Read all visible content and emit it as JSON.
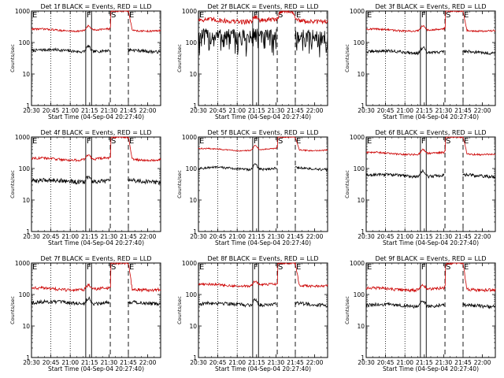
{
  "chart_data": [
    {
      "type": "line",
      "title": "Det 1f BLACK = Events, RED = LLD",
      "xlabel": "Start Time (04-Sep-04 20:27:40)",
      "ylabel": "Counts/sec",
      "yscale": "log",
      "ylim": [
        1,
        1000
      ],
      "xticks": [
        "20:30",
        "20:45",
        "21:00",
        "21:15",
        "21:30",
        "21:45",
        "22:00"
      ],
      "yticks": [
        "1",
        "10",
        "100",
        "1000"
      ],
      "flags": [
        "E",
        "F",
        "S",
        "E"
      ],
      "series": [
        {
          "color": "#000000",
          "profile": "black-norm",
          "base": 55,
          "noise": 0.05
        },
        {
          "color": "#cc0000",
          "profile": "red-norm",
          "base": 250,
          "noise": 0.03,
          "saturate": false
        }
      ]
    },
    {
      "type": "line",
      "title": "Det 2f BLACK = Events, RED = LLD",
      "xlabel": "Start Time (04-Sep-04 20:27:40)",
      "ylabel": "Counts/sec",
      "yscale": "log",
      "ylim": [
        1,
        1000
      ],
      "xticks": [
        "20:30",
        "20:45",
        "21:00",
        "21:15",
        "21:30",
        "21:45",
        "22:00"
      ],
      "yticks": [
        "1",
        "10",
        "100",
        "1000"
      ],
      "flags": [
        "E",
        "F",
        "S",
        "E"
      ],
      "series": [
        {
          "color": "#000000",
          "profile": "black-noisy",
          "base": 150,
          "noise": 0.35
        },
        {
          "color": "#cc0000",
          "profile": "red-saturate",
          "base": 500,
          "noise": 0.08,
          "saturate": true
        }
      ]
    },
    {
      "type": "line",
      "title": "Det 3f BLACK = Events, RED = LLD",
      "xlabel": "Start Time (04-Sep-04 20:27:40)",
      "ylabel": "Counts/sec",
      "yscale": "log",
      "ylim": [
        1,
        1000
      ],
      "xticks": [
        "20:30",
        "20:45",
        "21:00",
        "21:15",
        "21:30",
        "21:45",
        "22:00"
      ],
      "yticks": [
        "1",
        "10",
        "100",
        "1000"
      ],
      "flags": [
        "E",
        "F",
        "S",
        "E"
      ],
      "series": [
        {
          "color": "#000000",
          "profile": "black-norm",
          "base": 50,
          "noise": 0.05
        },
        {
          "color": "#cc0000",
          "profile": "red-norm",
          "base": 250,
          "noise": 0.03,
          "saturate": false
        }
      ]
    },
    {
      "type": "line",
      "title": "Det 4f BLACK = Events, RED = LLD",
      "xlabel": "Start Time (04-Sep-04 20:27:40)",
      "ylabel": "Counts/sec",
      "yscale": "log",
      "ylim": [
        1,
        1000
      ],
      "xticks": [
        "20:30",
        "20:45",
        "21:00",
        "21:15",
        "21:30",
        "21:45",
        "22:00"
      ],
      "yticks": [
        "1",
        "10",
        "100",
        "1000"
      ],
      "flags": [
        "E",
        "F",
        "S",
        "E"
      ],
      "series": [
        {
          "color": "#000000",
          "profile": "black-norm",
          "base": 40,
          "noise": 0.07
        },
        {
          "color": "#cc0000",
          "profile": "red-norm",
          "base": 200,
          "noise": 0.04,
          "saturate": false
        }
      ]
    },
    {
      "type": "line",
      "title": "Det 5f BLACK = Events, RED = LLD",
      "xlabel": "Start Time (04-Sep-04 20:27:40)",
      "ylabel": "Counts/sec",
      "yscale": "log",
      "ylim": [
        1,
        1000
      ],
      "xticks": [
        "20:30",
        "20:45",
        "21:00",
        "21:15",
        "21:30",
        "21:45",
        "22:00"
      ],
      "yticks": [
        "1",
        "10",
        "100",
        "1000"
      ],
      "flags": [
        "E",
        "F",
        "S",
        "E"
      ],
      "series": [
        {
          "color": "#000000",
          "profile": "black-norm",
          "base": 100,
          "noise": 0.04
        },
        {
          "color": "#cc0000",
          "profile": "red-norm",
          "base": 400,
          "noise": 0.02,
          "saturate": false
        }
      ]
    },
    {
      "type": "line",
      "title": "Det 6f BLACK = Events, RED = LLD",
      "xlabel": "Start Time (04-Sep-04 20:27:40)",
      "ylabel": "Counts/sec",
      "yscale": "log",
      "ylim": [
        1,
        1000
      ],
      "xticks": [
        "20:30",
        "20:45",
        "21:00",
        "21:15",
        "21:30",
        "21:45",
        "22:00"
      ],
      "yticks": [
        "1",
        "10",
        "100",
        "1000"
      ],
      "flags": [
        "E",
        "F",
        "S",
        "E"
      ],
      "series": [
        {
          "color": "#000000",
          "profile": "black-norm",
          "base": 60,
          "noise": 0.05
        },
        {
          "color": "#cc0000",
          "profile": "red-norm",
          "base": 300,
          "noise": 0.03,
          "saturate": false
        }
      ]
    },
    {
      "type": "line",
      "title": "Det 7f BLACK = Events, RED = LLD",
      "xlabel": "Start Time (04-Sep-04 20:27:40)",
      "ylabel": "Counts/sec",
      "yscale": "log",
      "ylim": [
        1,
        1000
      ],
      "xticks": [
        "20:30",
        "20:45",
        "21:00",
        "21:15",
        "21:30",
        "21:45",
        "22:00"
      ],
      "yticks": [
        "1",
        "10",
        "100",
        "1000"
      ],
      "flags": [
        "E",
        "F",
        "S",
        "E"
      ],
      "series": [
        {
          "color": "#000000",
          "profile": "black-norm",
          "base": 55,
          "noise": 0.06
        },
        {
          "color": "#cc0000",
          "profile": "red-norm",
          "base": 150,
          "noise": 0.05,
          "saturate": false
        }
      ]
    },
    {
      "type": "line",
      "title": "Det 8f BLACK = Events, RED = LLD",
      "xlabel": "Start Time (04-Sep-04 20:27:40)",
      "ylabel": "Counts/sec",
      "yscale": "log",
      "ylim": [
        1,
        1000
      ],
      "xticks": [
        "20:30",
        "20:45",
        "21:00",
        "21:15",
        "21:30",
        "21:45",
        "22:00"
      ],
      "yticks": [
        "1",
        "10",
        "100",
        "1000"
      ],
      "flags": [
        "E",
        "F",
        "S",
        "E"
      ],
      "series": [
        {
          "color": "#000000",
          "profile": "black-norm",
          "base": 50,
          "noise": 0.06
        },
        {
          "color": "#cc0000",
          "profile": "red-norm",
          "base": 200,
          "noise": 0.04,
          "saturate": false
        }
      ]
    },
    {
      "type": "line",
      "title": "Det 9f BLACK = Events, RED = LLD",
      "xlabel": "Start Time (04-Sep-04 20:27:40)",
      "ylabel": "Counts/sec",
      "yscale": "log",
      "ylim": [
        1,
        1000
      ],
      "xticks": [
        "20:30",
        "20:45",
        "21:00",
        "21:15",
        "21:30",
        "21:45",
        "22:00"
      ],
      "yticks": [
        "1",
        "10",
        "100",
        "1000"
      ],
      "flags": [
        "E",
        "F",
        "S",
        "E"
      ],
      "series": [
        {
          "color": "#000000",
          "profile": "black-norm",
          "base": 45,
          "noise": 0.06
        },
        {
          "color": "#cc0000",
          "profile": "red-norm",
          "base": 150,
          "noise": 0.05,
          "saturate": false
        }
      ]
    }
  ]
}
